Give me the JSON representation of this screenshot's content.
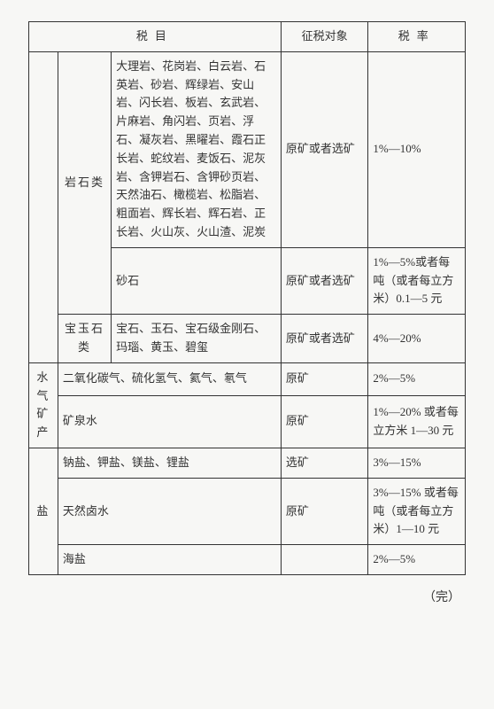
{
  "headers": {
    "item": "税目",
    "object": "征税对象",
    "rate": "税率"
  },
  "rows": [
    {
      "cat1": "",
      "cat2": "岩石类",
      "body": [
        {
          "item": "大理岩、花岗岩、白云岩、石英岩、砂岩、辉绿岩、安山岩、闪长岩、板岩、玄武岩、片麻岩、角闪岩、页岩、浮石、凝灰岩、黑曜岩、霞石正长岩、蛇纹岩、麦饭石、泥灰岩、含钾岩石、含钾砂页岩、天然油石、橄榄岩、松脂岩、粗面岩、辉长岩、辉石岩、正长岩、火山灰、火山渣、泥炭",
          "object": "原矿或者选矿",
          "rate": "1%—10%"
        },
        {
          "item": "砂石",
          "object": "原矿或者选矿",
          "rate": "1%—5%或者每吨（或者每立方米）0.1—5 元"
        }
      ]
    },
    {
      "cat1": "",
      "cat2": "宝玉石类",
      "body": [
        {
          "item": "宝石、玉石、宝石级金刚石、玛瑙、黄玉、碧玺",
          "object": "原矿或者选矿",
          "rate": "4%—20%"
        }
      ]
    },
    {
      "cat1": "水气矿产",
      "body": [
        {
          "item": "二氧化碳气、硫化氢气、氦气、氡气",
          "object": "原矿",
          "rate": "2%—5%"
        },
        {
          "item": "矿泉水",
          "object": "原矿",
          "rate": "1%—20% 或者每立方米 1—30 元"
        }
      ]
    },
    {
      "cat1": "盐",
      "body": [
        {
          "item": "钠盐、钾盐、镁盐、锂盐",
          "object": "选矿",
          "rate": "3%—15%"
        },
        {
          "item": "天然卤水",
          "object": "原矿",
          "rate": "3%—15% 或者每吨（或者每立方米）1—10 元"
        },
        {
          "item": "海盐",
          "object": "",
          "rate": "2%—5%"
        }
      ]
    }
  ],
  "footer": "（完）"
}
